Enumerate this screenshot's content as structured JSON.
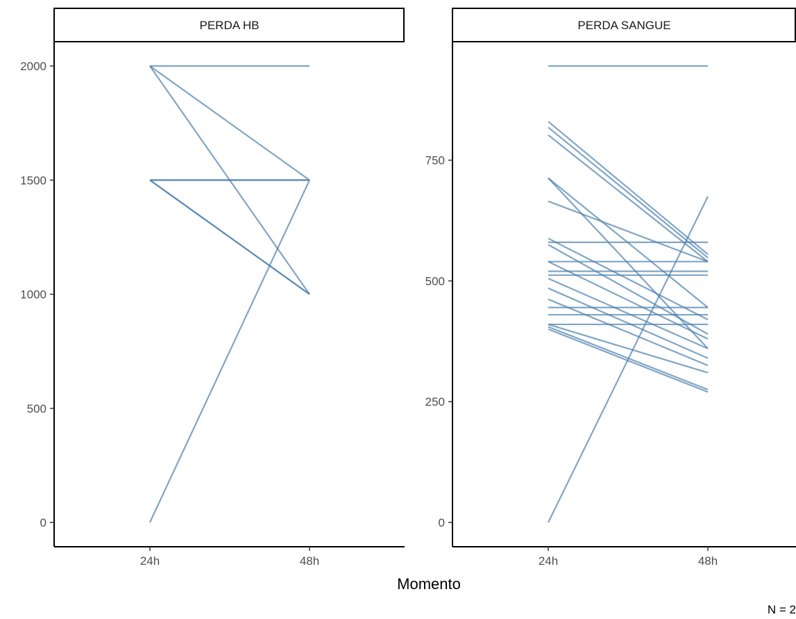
{
  "chart_data": {
    "type": "line",
    "xlabel": "Momento",
    "ylabel": "",
    "caption": "N = 2",
    "line_color": "#4a7fad",
    "categories": [
      "24h",
      "48h"
    ],
    "panels": [
      {
        "title": "PERDA HB",
        "ylim": [
          0,
          2000
        ],
        "yticks": [
          0,
          500,
          1000,
          1500,
          2000
        ],
        "yticklabels": [
          "0",
          "500",
          "1000",
          "1500",
          "2000"
        ],
        "series": [
          {
            "values": [
              2000,
              2000
            ]
          },
          {
            "values": [
              2000,
              1500
            ]
          },
          {
            "values": [
              2000,
              1000
            ]
          },
          {
            "values": [
              1500,
              1500
            ]
          },
          {
            "values": [
              1500,
              1500
            ]
          },
          {
            "values": [
              1500,
              1000
            ]
          },
          {
            "values": [
              1500,
              1000
            ]
          },
          {
            "values": [
              0,
              1500
            ]
          }
        ]
      },
      {
        "title": "PERDA SANGUE",
        "ylim": [
          0,
          945
        ],
        "yticks": [
          0,
          250,
          500,
          750
        ],
        "yticklabels": [
          "0",
          "250",
          "500",
          "750"
        ],
        "series": [
          {
            "values": [
              945,
              945
            ]
          },
          {
            "values": [
              830,
              555
            ]
          },
          {
            "values": [
              818,
              548
            ]
          },
          {
            "values": [
              802,
              540
            ]
          },
          {
            "values": [
              713,
              445
            ]
          },
          {
            "values": [
              713,
              360
            ]
          },
          {
            "values": [
              665,
              540
            ]
          },
          {
            "values": [
              588,
              420
            ]
          },
          {
            "values": [
              580,
              580
            ]
          },
          {
            "values": [
              575,
              390
            ]
          },
          {
            "values": [
              540,
              540
            ]
          },
          {
            "values": [
              540,
              380
            ]
          },
          {
            "values": [
              520,
              520
            ]
          },
          {
            "values": [
              512,
              512
            ]
          },
          {
            "values": [
              505,
              360
            ]
          },
          {
            "values": [
              485,
              340
            ]
          },
          {
            "values": [
              462,
              325
            ]
          },
          {
            "values": [
              445,
              445
            ]
          },
          {
            "values": [
              430,
              430
            ]
          },
          {
            "values": [
              410,
              410
            ]
          },
          {
            "values": [
              410,
              310
            ]
          },
          {
            "values": [
              405,
              275
            ]
          },
          {
            "values": [
              400,
              270
            ]
          },
          {
            "values": [
              0,
              675
            ]
          }
        ]
      }
    ]
  }
}
